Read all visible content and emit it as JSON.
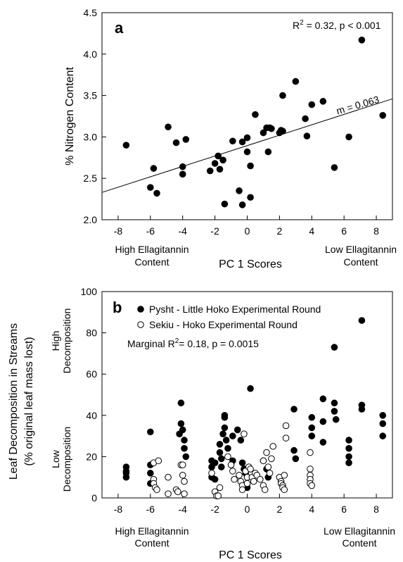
{
  "chart_data": [
    {
      "type": "scatter",
      "panel_label": "a",
      "xlabel": "PC 1 Scores",
      "ylabel": "% Nitrogen Content",
      "xlim": [
        -9,
        9
      ],
      "ylim": [
        2.0,
        4.5
      ],
      "xticks": [
        -8,
        -6,
        -4,
        -2,
        0,
        2,
        4,
        6,
        8
      ],
      "yticks": [
        "2.0",
        "2.5",
        "3.0",
        "3.5",
        "4.0",
        "4.5"
      ],
      "x_note_left": [
        "High Ellagitannin",
        "Content"
      ],
      "x_note_right": [
        "Low Ellagitannin",
        "Content"
      ],
      "stat_prefix": "R",
      "stat_sup": "2",
      "stat_suffix": " = 0.32, p < 0.001",
      "slope_label": "m = 0.063",
      "fit_line": {
        "x": [
          -9,
          9
        ],
        "y": [
          2.33,
          3.46
        ]
      },
      "grid": false,
      "series": [
        {
          "marker": "filled",
          "x": [
            -7.5,
            -6.0,
            -5.8,
            -5.6,
            -4.9,
            -4.4,
            -4.0,
            -4.0,
            -3.8,
            -2.3,
            -2.0,
            -1.8,
            -1.7,
            -1.5,
            -1.4,
            -0.9,
            -0.5,
            -0.3,
            -0.3,
            0.0,
            0.0,
            0.2,
            0.2,
            0.5,
            1.0,
            1.2,
            1.3,
            1.4,
            1.5,
            2.0,
            2.1,
            2.2,
            2.2,
            3.0,
            3.6,
            3.7,
            4.0,
            4.7,
            5.4,
            6.3,
            7.1,
            8.4
          ],
          "y": [
            2.9,
            2.39,
            2.62,
            2.32,
            3.12,
            2.93,
            2.64,
            2.55,
            2.97,
            2.59,
            2.68,
            2.77,
            2.61,
            2.72,
            2.19,
            2.95,
            2.35,
            2.18,
            2.94,
            2.82,
            2.99,
            2.27,
            2.65,
            3.27,
            3.05,
            3.11,
            2.82,
            3.11,
            3.1,
            3.05,
            3.08,
            3.07,
            3.5,
            3.67,
            3.22,
            3.01,
            3.39,
            3.43,
            2.63,
            3.0,
            4.17,
            3.26
          ]
        }
      ]
    },
    {
      "type": "scatter",
      "panel_label": "b",
      "xlabel": "PC 1 Scores",
      "ylabel_lines": [
        "Leaf Decomposition in Streams",
        "(% original leaf mass lost)"
      ],
      "y_note_top": [
        "High",
        "Decomposition"
      ],
      "y_note_bottom": [
        "Low",
        "Decomposition"
      ],
      "xlim": [
        -9,
        9
      ],
      "ylim": [
        0,
        100
      ],
      "xticks": [
        -8,
        -6,
        -4,
        -2,
        0,
        2,
        4,
        6,
        8
      ],
      "yticks": [
        "0",
        "20",
        "40",
        "60",
        "80",
        "100"
      ],
      "x_note_left": [
        "High Ellagitannin",
        "Content"
      ],
      "x_note_right": [
        "Low Ellagitannin",
        "Content"
      ],
      "stat_prefix": "Marginal R",
      "stat_sup": "2",
      "stat_suffix": "= 0.18, p = 0.0015",
      "grid": false,
      "legend": "top-left",
      "series": [
        {
          "name": "Pysht - Little Hoko Experimental Round",
          "marker": "filled",
          "x": [
            -7.5,
            -7.5,
            -7.5,
            -7.5,
            -6.0,
            -6.0,
            -6.0,
            -6.0,
            -4.2,
            -4.1,
            -4.1,
            -4.0,
            -3.9,
            -3.9,
            -3.8,
            -2.2,
            -2.2,
            -2.2,
            -2.0,
            -2.0,
            -1.7,
            -1.7,
            -1.6,
            -1.6,
            -1.5,
            -1.4,
            -1.4,
            -1.4,
            -1.3,
            -1.2,
            -0.9,
            -0.9,
            -0.6,
            -0.4,
            -0.3,
            -0.2,
            -0.1,
            0.0,
            0.0,
            0.2,
            1.0,
            1.2,
            1.3,
            2.9,
            2.9,
            3.0,
            4.0,
            4.0,
            4.0,
            4.7,
            4.7,
            4.7,
            5.4,
            5.4,
            5.4,
            5.5,
            6.3,
            6.3,
            6.3,
            6.3,
            7.1,
            7.1,
            7.1,
            8.4,
            8.4,
            8.4
          ],
          "y": [
            15,
            13,
            12,
            10,
            32,
            16,
            12,
            7,
            31,
            46,
            36,
            33,
            28,
            24,
            20,
            18,
            15,
            10,
            17,
            9,
            26,
            22,
            19,
            15,
            31,
            40,
            39,
            34,
            28,
            24,
            30,
            18,
            33,
            28,
            17,
            14,
            12,
            7,
            5,
            53,
            18,
            14,
            10,
            43,
            23,
            19,
            39,
            34,
            30,
            48,
            37,
            27,
            73,
            46,
            42,
            38,
            28,
            24,
            20,
            17,
            86,
            45,
            43,
            40,
            36,
            30
          ]
        },
        {
          "name": "Sekiu - Hoko Experimental Round",
          "marker": "open",
          "x": [
            -5.8,
            -5.8,
            -5.8,
            -5.7,
            -5.6,
            -5.5,
            -4.9,
            -4.9,
            -4.4,
            -4.3,
            -4.1,
            -4.0,
            -4.0,
            -3.9,
            -3.9,
            -2.2,
            -2.0,
            -1.9,
            -1.8,
            -1.7,
            -1.2,
            -1.0,
            -0.9,
            -0.8,
            -0.5,
            -0.4,
            -0.3,
            -0.3,
            -0.2,
            -0.1,
            0.0,
            0.0,
            0.1,
            0.2,
            0.3,
            0.4,
            0.5,
            0.6,
            0.8,
            1.0,
            1.0,
            1.1,
            1.2,
            1.3,
            1.4,
            1.5,
            1.6,
            2.0,
            2.1,
            2.1,
            2.2,
            2.2,
            2.3,
            2.3,
            2.4,
            2.4,
            3.9,
            3.9,
            3.9,
            3.9,
            3.9,
            4.0
          ],
          "y": [
            17,
            9,
            7,
            5,
            4,
            18,
            10,
            2,
            4,
            3,
            16,
            16,
            11,
            8,
            2,
            12,
            3,
            1,
            1,
            5,
            20,
            16,
            13,
            9,
            11,
            8,
            6,
            4,
            31,
            13,
            10,
            7,
            15,
            14,
            10,
            8,
            12,
            11,
            9,
            18,
            6,
            4,
            22,
            15,
            12,
            19,
            25,
            10,
            8,
            7,
            6,
            5,
            11,
            4,
            35,
            29,
            22,
            14,
            11,
            9,
            7,
            6
          ]
        }
      ]
    }
  ]
}
